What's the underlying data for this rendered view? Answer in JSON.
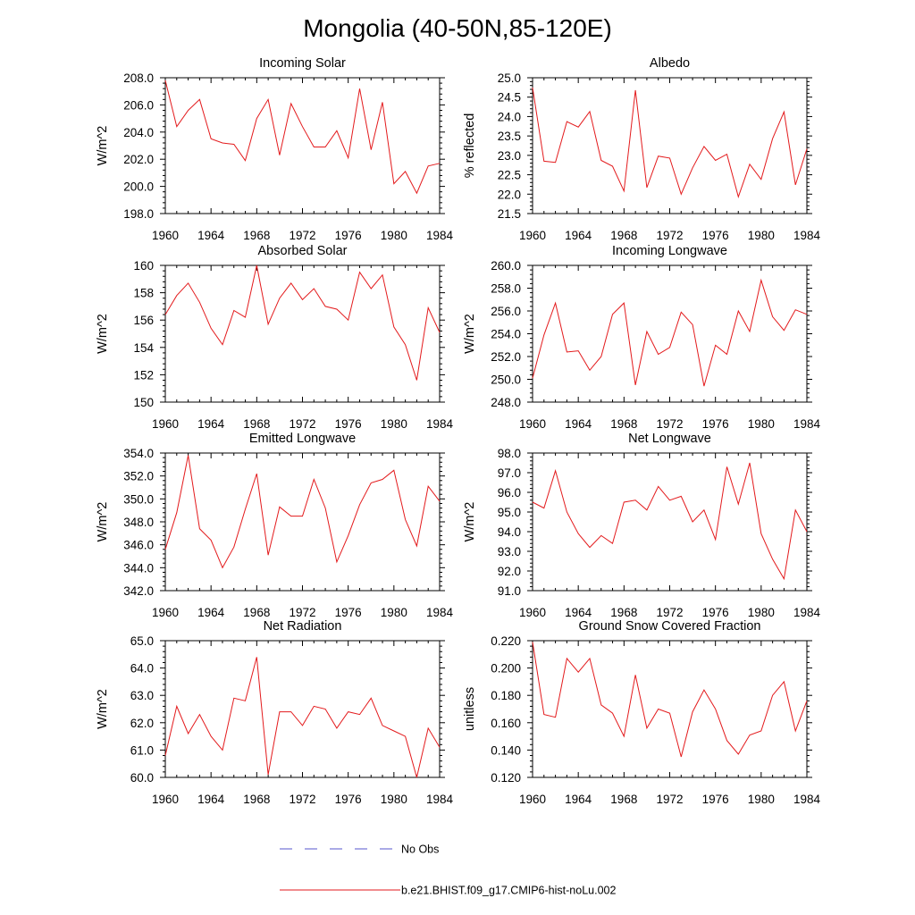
{
  "title": "Mongolia (40-50N,85-120E)",
  "legend": [
    {
      "label": "No Obs",
      "color": "#5555cc",
      "dash": "dashed"
    },
    {
      "label": "b.e21.BHIST.f09_g17.CMIP6-hist-noLu.002",
      "color": "#e31a1c",
      "dash": "solid"
    }
  ],
  "colors": {
    "series": "#e31a1c",
    "axis": "#000000"
  },
  "chart_data": [
    {
      "type": "line",
      "title": "Incoming Solar",
      "ylabel": "W/m^2",
      "xlim": [
        1960,
        1984
      ],
      "ylim": [
        198,
        208
      ],
      "xticks": [
        "1960",
        "1964",
        "1968",
        "1972",
        "1976",
        "1980",
        "1984"
      ],
      "yticks": [
        "198.0",
        "200.0",
        "202.0",
        "204.0",
        "206.0",
        "208.0"
      ],
      "x": [
        1960,
        1961,
        1962,
        1963,
        1964,
        1965,
        1966,
        1967,
        1968,
        1969,
        1970,
        1971,
        1972,
        1973,
        1974,
        1975,
        1976,
        1977,
        1978,
        1979,
        1980,
        1981,
        1982,
        1983,
        1984
      ],
      "series": [
        {
          "name": "b.e21.BHIST.f09_g17.CMIP6-hist-noLu.002",
          "values": [
            207.8,
            204.4,
            205.6,
            206.4,
            203.5,
            203.2,
            203.1,
            201.9,
            205.0,
            206.4,
            202.3,
            206.1,
            204.4,
            202.9,
            202.9,
            204.1,
            202.1,
            207.2,
            202.7,
            206.2,
            200.2,
            201.1,
            199.5,
            201.5,
            201.7
          ]
        }
      ]
    },
    {
      "type": "line",
      "title": "Albedo",
      "ylabel": "% reflected",
      "xlim": [
        1960,
        1984
      ],
      "ylim": [
        21.5,
        25.0
      ],
      "xticks": [
        "1960",
        "1964",
        "1968",
        "1972",
        "1976",
        "1980",
        "1984"
      ],
      "yticks": [
        "21.5",
        "22.0",
        "22.5",
        "23.0",
        "23.5",
        "24.0",
        "24.5",
        "25.0"
      ],
      "x": [
        1960,
        1961,
        1962,
        1963,
        1964,
        1965,
        1966,
        1967,
        1968,
        1969,
        1970,
        1971,
        1972,
        1973,
        1974,
        1975,
        1976,
        1977,
        1978,
        1979,
        1980,
        1981,
        1982,
        1983,
        1984
      ],
      "series": [
        {
          "name": "b.e21.BHIST.f09_g17.CMIP6-hist-noLu.002",
          "values": [
            24.75,
            22.85,
            22.82,
            23.87,
            23.73,
            24.13,
            22.87,
            22.72,
            22.08,
            24.68,
            22.17,
            22.98,
            22.93,
            22.0,
            22.68,
            23.23,
            22.87,
            23.03,
            21.93,
            22.77,
            22.38,
            23.43,
            24.12,
            22.24,
            23.17
          ]
        }
      ]
    },
    {
      "type": "line",
      "title": "Absorbed Solar",
      "ylabel": "W/m^2",
      "xlim": [
        1960,
        1984
      ],
      "ylim": [
        150,
        160
      ],
      "xticks": [
        "1960",
        "1964",
        "1968",
        "1972",
        "1976",
        "1980",
        "1984"
      ],
      "yticks": [
        "150",
        "152",
        "154",
        "156",
        "158",
        "160"
      ],
      "x": [
        1960,
        1961,
        1962,
        1963,
        1964,
        1965,
        1966,
        1967,
        1968,
        1969,
        1970,
        1971,
        1972,
        1973,
        1974,
        1975,
        1976,
        1977,
        1978,
        1979,
        1980,
        1981,
        1982,
        1983,
        1984
      ],
      "series": [
        {
          "name": "b.e21.BHIST.f09_g17.CMIP6-hist-noLu.002",
          "values": [
            156.4,
            157.8,
            158.7,
            157.3,
            155.4,
            154.2,
            156.7,
            156.2,
            160.0,
            155.7,
            157.6,
            158.7,
            157.5,
            158.3,
            157.0,
            156.8,
            156.0,
            159.5,
            158.3,
            159.3,
            155.5,
            154.2,
            151.6,
            156.9,
            155.1
          ]
        }
      ]
    },
    {
      "type": "line",
      "title": "Incoming Longwave",
      "ylabel": "W/m^2",
      "xlim": [
        1960,
        1984
      ],
      "ylim": [
        248,
        260
      ],
      "xticks": [
        "1960",
        "1964",
        "1968",
        "1972",
        "1976",
        "1980",
        "1984"
      ],
      "yticks": [
        "248.0",
        "250.0",
        "252.0",
        "254.0",
        "256.0",
        "258.0",
        "260.0"
      ],
      "x": [
        1960,
        1961,
        1962,
        1963,
        1964,
        1965,
        1966,
        1967,
        1968,
        1969,
        1970,
        1971,
        1972,
        1973,
        1974,
        1975,
        1976,
        1977,
        1978,
        1979,
        1980,
        1981,
        1982,
        1983,
        1984
      ],
      "series": [
        {
          "name": "b.e21.BHIST.f09_g17.CMIP6-hist-noLu.002",
          "values": [
            250.1,
            253.9,
            256.7,
            252.4,
            252.5,
            250.8,
            252.0,
            255.7,
            256.7,
            249.5,
            254.2,
            252.2,
            252.8,
            255.9,
            254.8,
            249.4,
            253.0,
            252.2,
            256.0,
            254.2,
            258.7,
            255.5,
            254.3,
            256.1,
            255.7
          ]
        }
      ]
    },
    {
      "type": "line",
      "title": "Emitted Longwave",
      "ylabel": "W/m^2",
      "xlim": [
        1960,
        1984
      ],
      "ylim": [
        342,
        354
      ],
      "xticks": [
        "1960",
        "1964",
        "1968",
        "1972",
        "1976",
        "1980",
        "1984"
      ],
      "yticks": [
        "342.0",
        "344.0",
        "346.0",
        "348.0",
        "350.0",
        "352.0",
        "354.0"
      ],
      "x": [
        1960,
        1961,
        1962,
        1963,
        1964,
        1965,
        1966,
        1967,
        1968,
        1969,
        1970,
        1971,
        1972,
        1973,
        1974,
        1975,
        1976,
        1977,
        1978,
        1979,
        1980,
        1981,
        1982,
        1983,
        1984
      ],
      "series": [
        {
          "name": "b.e21.BHIST.f09_g17.CMIP6-hist-noLu.002",
          "values": [
            345.6,
            348.8,
            353.8,
            347.4,
            346.4,
            344.0,
            345.8,
            349.1,
            352.2,
            345.1,
            349.3,
            348.5,
            348.5,
            351.7,
            349.2,
            344.5,
            346.8,
            349.5,
            351.4,
            351.7,
            352.5,
            348.2,
            345.9,
            351.1,
            349.8
          ]
        }
      ]
    },
    {
      "type": "line",
      "title": "Net Longwave",
      "ylabel": "W/m^2",
      "xlim": [
        1960,
        1984
      ],
      "ylim": [
        91,
        98
      ],
      "xticks": [
        "1960",
        "1964",
        "1968",
        "1972",
        "1976",
        "1980",
        "1984"
      ],
      "yticks": [
        "91.0",
        "92.0",
        "93.0",
        "94.0",
        "95.0",
        "96.0",
        "97.0",
        "98.0"
      ],
      "x": [
        1960,
        1961,
        1962,
        1963,
        1964,
        1965,
        1966,
        1967,
        1968,
        1969,
        1970,
        1971,
        1972,
        1973,
        1974,
        1975,
        1976,
        1977,
        1978,
        1979,
        1980,
        1981,
        1982,
        1983,
        1984
      ],
      "series": [
        {
          "name": "b.e21.BHIST.f09_g17.CMIP6-hist-noLu.002",
          "values": [
            95.5,
            95.2,
            97.1,
            95.0,
            93.9,
            93.2,
            93.8,
            93.4,
            95.5,
            95.6,
            95.1,
            96.3,
            95.6,
            95.8,
            94.5,
            95.1,
            93.6,
            97.3,
            95.4,
            97.5,
            93.9,
            92.6,
            91.6,
            95.1,
            94.0
          ]
        }
      ]
    },
    {
      "type": "line",
      "title": "Net Radiation",
      "ylabel": "W/m^2",
      "xlim": [
        1960,
        1984
      ],
      "ylim": [
        60,
        65
      ],
      "xticks": [
        "1960",
        "1964",
        "1968",
        "1972",
        "1976",
        "1980",
        "1984"
      ],
      "yticks": [
        "60.0",
        "61.0",
        "62.0",
        "63.0",
        "64.0",
        "65.0"
      ],
      "x": [
        1960,
        1961,
        1962,
        1963,
        1964,
        1965,
        1966,
        1967,
        1968,
        1969,
        1970,
        1971,
        1972,
        1973,
        1974,
        1975,
        1976,
        1977,
        1978,
        1979,
        1980,
        1981,
        1982,
        1983,
        1984
      ],
      "series": [
        {
          "name": "b.e21.BHIST.f09_g17.CMIP6-hist-noLu.002",
          "values": [
            60.8,
            62.6,
            61.6,
            62.3,
            61.5,
            61.0,
            62.9,
            62.8,
            64.4,
            60.1,
            62.4,
            62.4,
            61.9,
            62.6,
            62.5,
            61.8,
            62.4,
            62.3,
            62.9,
            61.9,
            61.7,
            61.5,
            60.0,
            61.8,
            61.1
          ]
        }
      ]
    },
    {
      "type": "line",
      "title": "Ground Snow Covered Fraction",
      "ylabel": "unitless",
      "xlim": [
        1960,
        1984
      ],
      "ylim": [
        0.12,
        0.22
      ],
      "xticks": [
        "1960",
        "1964",
        "1968",
        "1972",
        "1976",
        "1980",
        "1984"
      ],
      "yticks": [
        "0.120",
        "0.140",
        "0.160",
        "0.180",
        "0.200",
        "0.220"
      ],
      "x": [
        1960,
        1961,
        1962,
        1963,
        1964,
        1965,
        1966,
        1967,
        1968,
        1969,
        1970,
        1971,
        1972,
        1973,
        1974,
        1975,
        1976,
        1977,
        1978,
        1979,
        1980,
        1981,
        1982,
        1983,
        1984
      ],
      "series": [
        {
          "name": "b.e21.BHIST.f09_g17.CMIP6-hist-noLu.002",
          "values": [
            0.219,
            0.166,
            0.164,
            0.207,
            0.197,
            0.207,
            0.173,
            0.167,
            0.15,
            0.195,
            0.156,
            0.17,
            0.167,
            0.135,
            0.168,
            0.184,
            0.17,
            0.147,
            0.137,
            0.151,
            0.154,
            0.18,
            0.19,
            0.154,
            0.176
          ]
        }
      ]
    }
  ]
}
